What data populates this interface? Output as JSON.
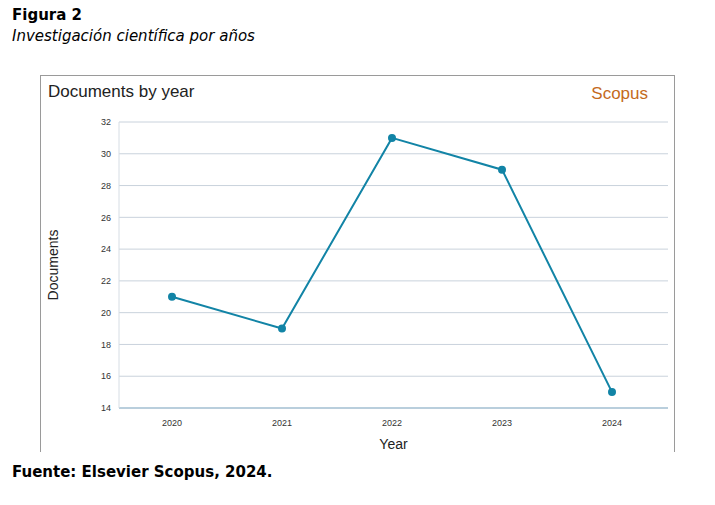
{
  "figure_label": "Figura 2",
  "figure_caption": "Investigación científica por años",
  "source": "Fuente: Elsevier Scopus, 2024.",
  "chart_data": {
    "type": "line",
    "title": "Documents by year",
    "annotations": [
      "Scopus"
    ],
    "x_label": "Year",
    "y_label": "Documents",
    "categories": [
      "2020",
      "2021",
      "2022",
      "2023",
      "2024"
    ],
    "values": [
      21,
      19,
      31,
      29,
      15
    ],
    "color": "#1284a6",
    "marker": "circle",
    "ylim": [
      14,
      32
    ],
    "yticks": [
      14,
      16,
      18,
      20,
      22,
      24,
      26,
      28,
      30,
      32
    ],
    "grid": true
  }
}
